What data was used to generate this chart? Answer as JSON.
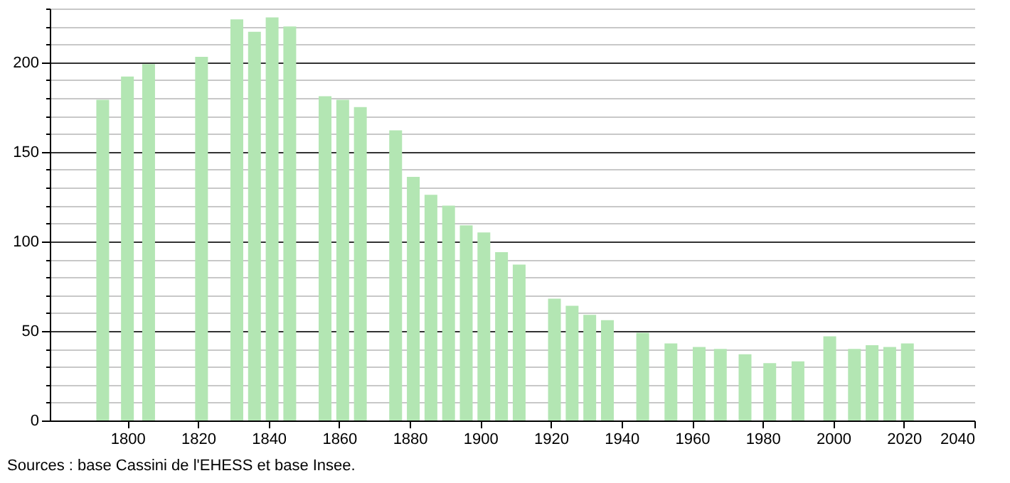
{
  "chart_data": {
    "type": "bar",
    "x": [
      1793,
      1800,
      1806,
      1821,
      1831,
      1836,
      1841,
      1846,
      1856,
      1861,
      1866,
      1876,
      1881,
      1886,
      1891,
      1896,
      1901,
      1906,
      1911,
      1921,
      1926,
      1931,
      1936,
      1946,
      1954,
      1962,
      1968,
      1975,
      1982,
      1990,
      1999,
      2006,
      2011,
      2016,
      2021
    ],
    "values": [
      179,
      192,
      199,
      203,
      224,
      217,
      225,
      220,
      181,
      179,
      175,
      162,
      136,
      126,
      120,
      109,
      105,
      94,
      87,
      68,
      64,
      59,
      56,
      49,
      43,
      41,
      40,
      37,
      32,
      33,
      47,
      40,
      42,
      41,
      43
    ],
    "color": "#b3e6b3",
    "xlim": [
      1778,
      2040
    ],
    "xticks": [
      1800,
      1820,
      1840,
      1860,
      1880,
      1900,
      1920,
      1940,
      1960,
      1980,
      2000,
      2020,
      2040
    ],
    "ylim": [
      0,
      230
    ],
    "yticks": [
      0,
      {
        "value": 10,
        "label": null
      },
      {
        "value": 20,
        "label": null
      },
      {
        "value": 30,
        "label": null
      },
      {
        "value": 40,
        "label": null
      },
      50,
      {
        "value": 60,
        "label": null
      },
      {
        "value": 70,
        "label": null
      },
      {
        "value": 80,
        "label": null
      },
      {
        "value": 90,
        "label": null
      },
      100,
      {
        "value": 110,
        "label": null
      },
      {
        "value": 120,
        "label": null
      },
      {
        "value": 130,
        "label": null
      },
      {
        "value": 140,
        "label": null
      },
      150,
      {
        "value": 160,
        "label": null
      },
      {
        "value": 170,
        "label": null
      },
      {
        "value": 180,
        "label": null
      },
      {
        "value": 190,
        "label": null
      },
      200,
      {
        "value": 210,
        "label": null
      },
      {
        "value": 220,
        "label": null
      },
      {
        "value": 230,
        "label": null
      }
    ],
    "grid": "y",
    "annotations": [
      "Sources : base Cassini de l'EHESS et base Insee."
    ]
  }
}
